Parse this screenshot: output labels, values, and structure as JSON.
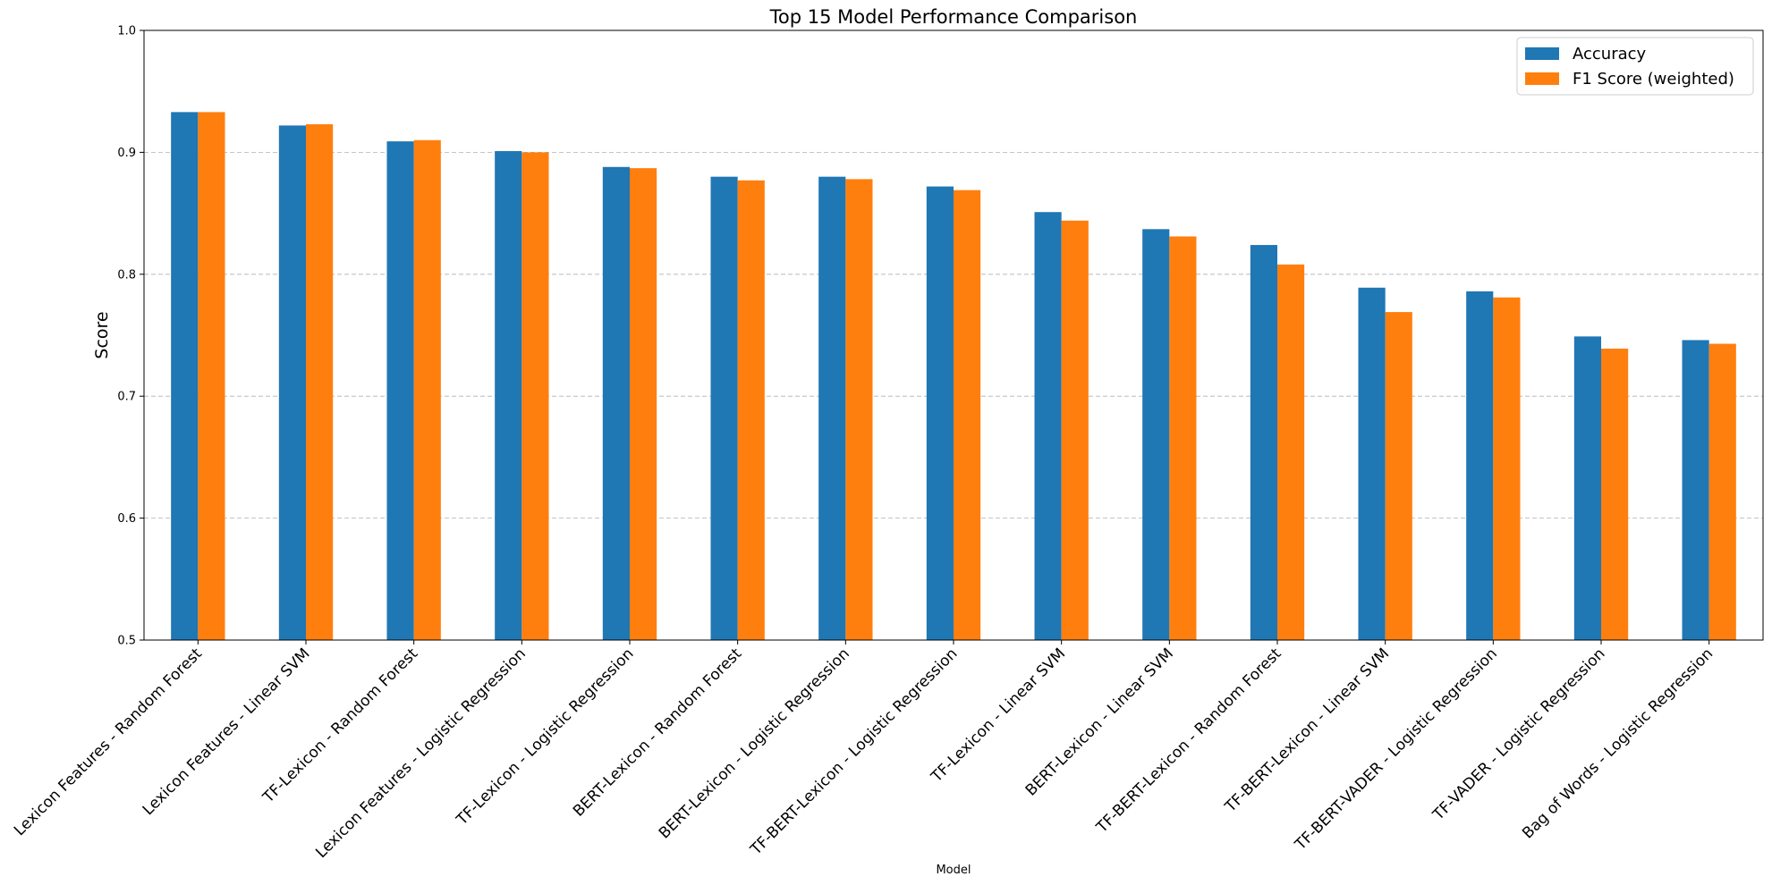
{
  "chart_data": {
    "type": "bar",
    "title": "Top 15 Model Performance Comparison",
    "xlabel": "Model",
    "ylabel": "Score",
    "ylim": [
      0.5,
      1.0
    ],
    "yticks": [
      "0.5",
      "0.6",
      "0.7",
      "0.8",
      "0.9",
      "1.0"
    ],
    "grid": "y-dashed",
    "legend_position": "top-right",
    "categories": [
      "Lexicon Features - Random Forest",
      "Lexicon Features - Linear SVM",
      "TF-Lexicon - Random Forest",
      "Lexicon Features - Logistic Regression",
      "TF-Lexicon - Logistic Regression",
      "BERT-Lexicon - Random Forest",
      "BERT-Lexicon - Logistic Regression",
      "TF-BERT-Lexicon - Logistic Regression",
      "TF-Lexicon - Linear SVM",
      "BERT-Lexicon - Linear SVM",
      "TF-BERT-Lexicon - Random Forest",
      "TF-BERT-Lexicon - Linear SVM",
      "TF-BERT-VADER - Logistic Regression",
      "TF-VADER - Logistic Regression",
      "Bag of Words - Logistic Regression"
    ],
    "series": [
      {
        "name": "Accuracy",
        "color": "#1f77b4",
        "values": [
          0.933,
          0.922,
          0.909,
          0.901,
          0.888,
          0.88,
          0.88,
          0.872,
          0.851,
          0.837,
          0.824,
          0.789,
          0.786,
          0.749,
          0.746
        ]
      },
      {
        "name": "F1 Score (weighted)",
        "color": "#ff7f0e",
        "values": [
          0.933,
          0.923,
          0.91,
          0.9,
          0.887,
          0.877,
          0.878,
          0.869,
          0.844,
          0.831,
          0.808,
          0.769,
          0.781,
          0.739,
          0.743
        ]
      }
    ]
  }
}
